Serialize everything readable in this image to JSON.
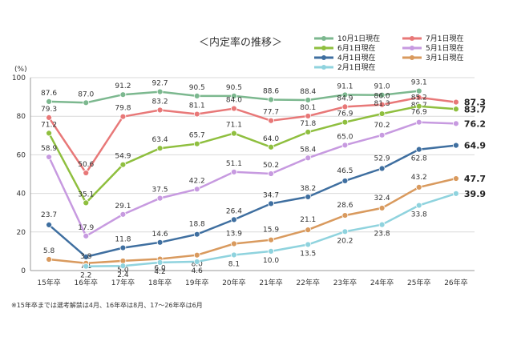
{
  "chart_data": {
    "type": "line",
    "title": "＜内定率の推移＞",
    "ylabel": "(%)",
    "ylim": [
      0,
      100
    ],
    "yticks": [
      0,
      20,
      40,
      60,
      80,
      100
    ],
    "categories": [
      "15年卒",
      "16年卒",
      "17年卒",
      "18年卒",
      "19年卒",
      "20年卒",
      "21年卒",
      "22年卒",
      "23年卒",
      "24年卒",
      "25年卒",
      "26年卒"
    ],
    "grid": true,
    "legend_position": "top-right",
    "note": "※15年卒までは選考解禁は4月、16年卒は8月、17～26年卒は6月",
    "series": [
      {
        "name": "10月1日現在",
        "color": "#7cb88f",
        "values": [
          87.6,
          87.0,
          91.2,
          92.7,
          90.5,
          90.5,
          88.6,
          88.4,
          91.1,
          91.0,
          93.1,
          null
        ]
      },
      {
        "name": "7月1日現在",
        "color": "#e87878",
        "values": [
          79.3,
          50.6,
          79.8,
          83.2,
          81.1,
          84.0,
          77.7,
          80.1,
          84.9,
          86.0,
          89.7,
          87.3
        ]
      },
      {
        "name": "6月1日現在",
        "color": "#8fbf3f",
        "values": [
          71.2,
          35.1,
          54.9,
          63.4,
          65.7,
          71.1,
          64.0,
          71.8,
          76.9,
          81.3,
          85.2,
          83.7
        ]
      },
      {
        "name": "5月1日現在",
        "color": "#c79ae0",
        "values": [
          58.9,
          17.9,
          29.1,
          37.5,
          42.2,
          51.1,
          50.2,
          58.4,
          65.0,
          70.2,
          76.9,
          76.2
        ]
      },
      {
        "name": "4月1日現在",
        "color": "#3f6fa0",
        "values": [
          23.7,
          7.1,
          11.8,
          14.6,
          18.8,
          26.4,
          34.7,
          38.2,
          46.5,
          52.9,
          62.8,
          64.9
        ]
      },
      {
        "name": "3月1日現在",
        "color": "#d99a5e",
        "values": [
          5.8,
          3.8,
          5.0,
          6.0,
          8.0,
          13.9,
          15.9,
          21.1,
          28.6,
          32.4,
          43.2,
          47.7
        ]
      },
      {
        "name": "2月1日現在",
        "color": "#8fd3de",
        "values": [
          null,
          2.2,
          2.4,
          4.2,
          4.6,
          8.1,
          10.0,
          13.5,
          20.2,
          23.8,
          33.8,
          39.9
        ]
      }
    ]
  }
}
